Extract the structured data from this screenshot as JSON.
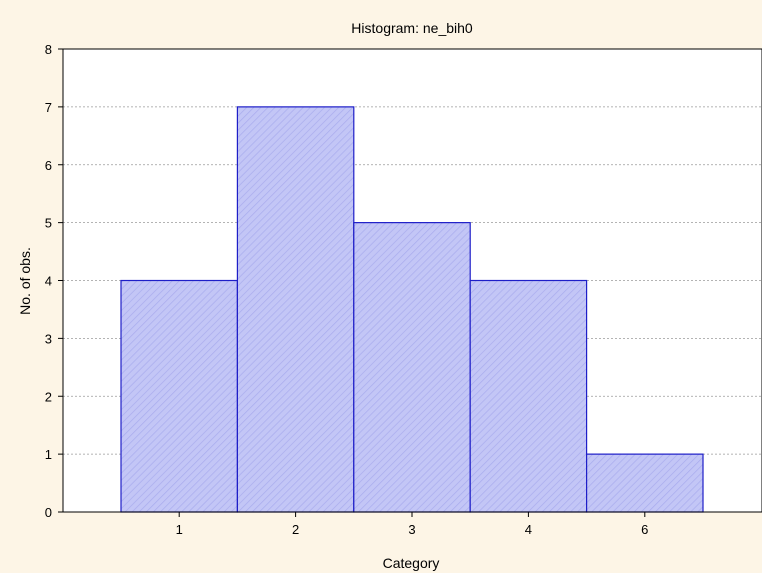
{
  "chart_data": {
    "type": "bar",
    "title": "Histogram: ne_bih0",
    "xlabel": "Category",
    "ylabel": "No. of obs.",
    "categories": [
      "1",
      "2",
      "3",
      "4",
      "6"
    ],
    "values": [
      4,
      7,
      5,
      4,
      1
    ],
    "ylim": [
      0,
      8
    ],
    "yticks": [
      "0",
      "1",
      "2",
      "3",
      "4",
      "5",
      "6",
      "7",
      "8"
    ],
    "grid": "horizontal dashed",
    "legend": "none",
    "colors": {
      "background": "#FDF5E6",
      "plot_background": "#FFFFFF",
      "bar_fill": "#C3C6F6",
      "bar_hatch": "#A9ACEE",
      "bar_stroke": "#1E1EC8",
      "grid": "#9A9A9A"
    }
  }
}
